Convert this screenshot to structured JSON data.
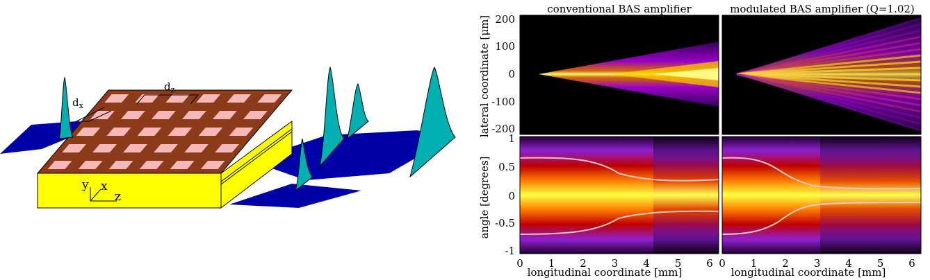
{
  "left_schematic": {
    "dz_label": "d",
    "dz_sub": "z",
    "dx_label": "d",
    "dx_sub": "x",
    "axis_y": "y",
    "axis_x": "x",
    "axis_z": "z"
  },
  "right_panels": {
    "title_left": "conventional BAS amplifier",
    "title_right": "modulated BAS amplifier (Q=1.02)",
    "ylabel_top": "lateral coordinate [μm]",
    "ylabel_bottom": "angle  [degrees]",
    "xlabel_left": "longitudinal coordinate     [mm]",
    "xlabel_right": "longitudinal coordinate     [mm]",
    "yticks_top": [
      "200",
      "100",
      "0",
      "-100",
      "-200"
    ],
    "yticks_bottom": [
      "1",
      "0.5",
      "0",
      "-0.5",
      "-1"
    ],
    "xticks": [
      "0",
      "1",
      "2",
      "3",
      "4",
      "5",
      "6"
    ]
  },
  "colors": {
    "stripe": "#8B3A1A",
    "pad": "#F6B8B8",
    "substrate": "#FFFF00",
    "field": "#0000A8",
    "beam": "#00B0B0"
  }
}
